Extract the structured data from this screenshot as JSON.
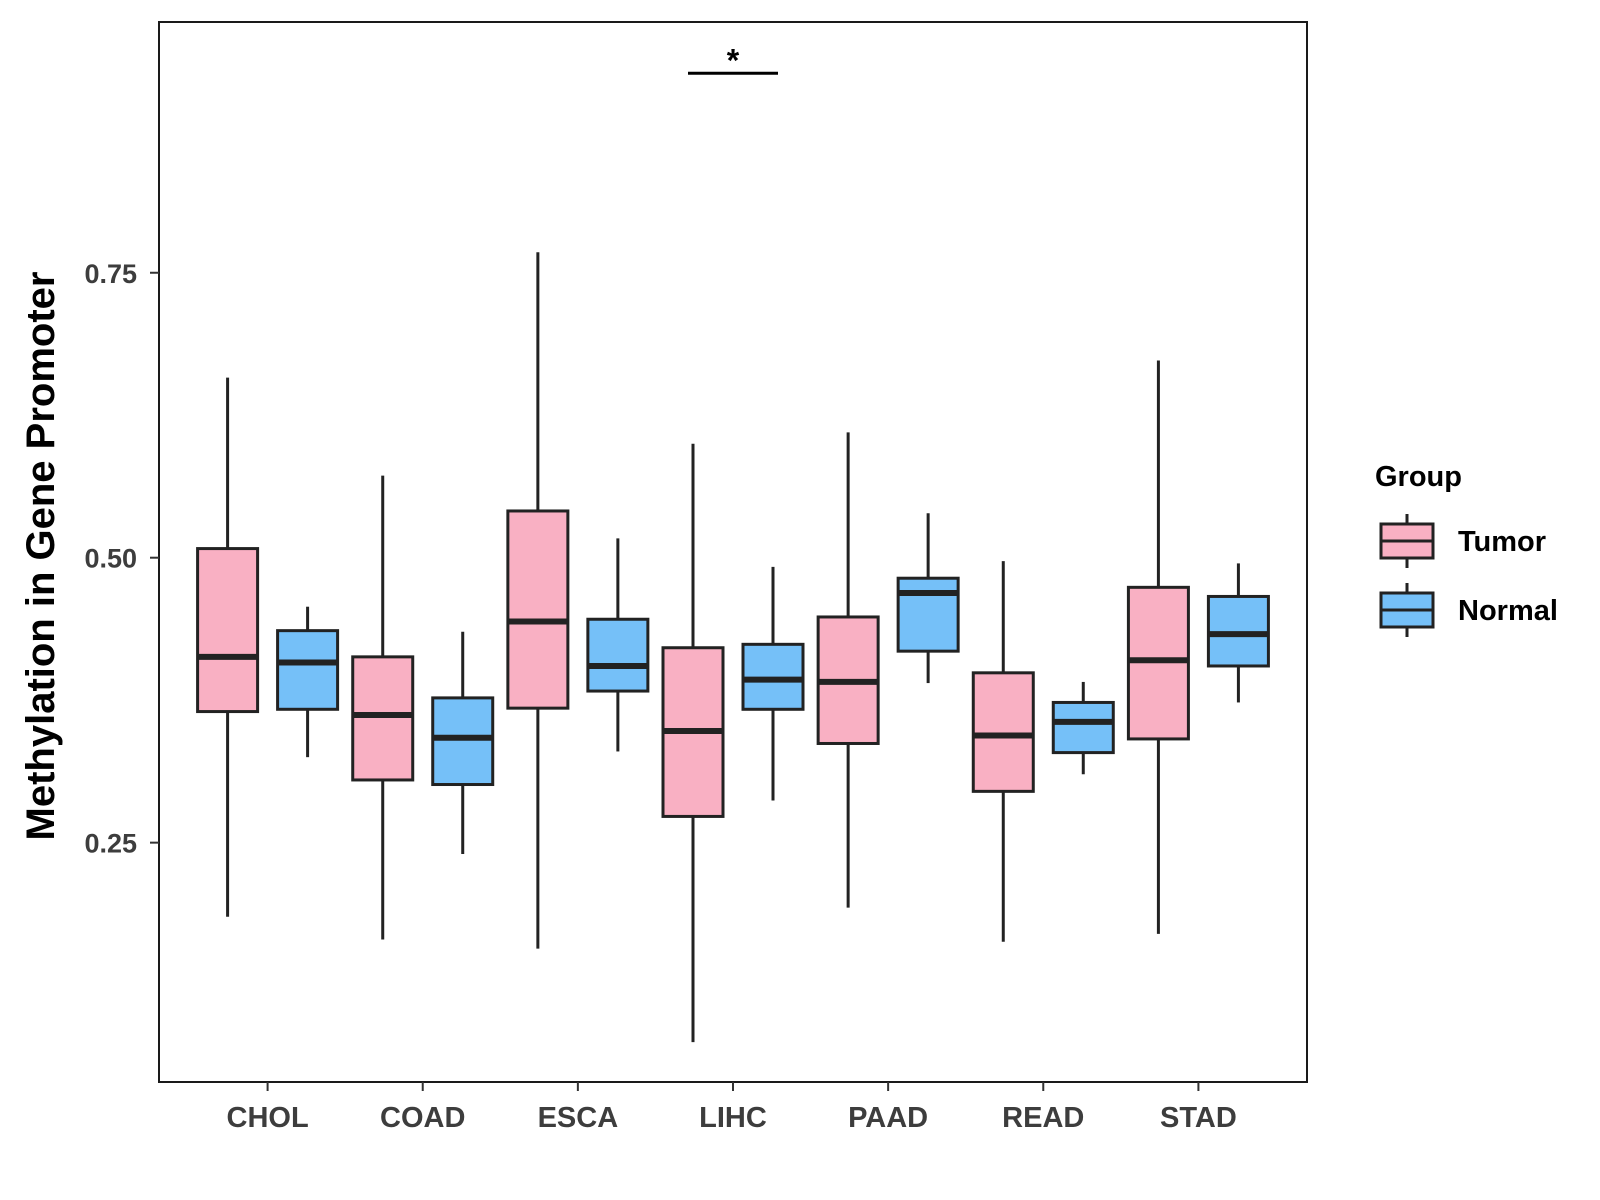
{
  "chart_data": {
    "type": "boxplot",
    "title": "",
    "xlabel": "",
    "ylabel": "Methylation in Gene Promoter",
    "ylim": [
      0.04,
      0.97
    ],
    "yticks": [
      0.25,
      0.5,
      0.75
    ],
    "ytick_labels": [
      "0.25",
      "0.50",
      "0.75"
    ],
    "grid": false,
    "categories": [
      "CHOL",
      "COAD",
      "ESCA",
      "LIHC",
      "PAAD",
      "READ",
      "STAD"
    ],
    "legend": {
      "title": "Group",
      "position": "right"
    },
    "series": [
      {
        "name": "Tumor",
        "color": "#F9B0C3",
        "boxes": [
          {
            "min": 0.185,
            "q1": 0.365,
            "median": 0.413,
            "q3": 0.508,
            "max": 0.658
          },
          {
            "min": 0.165,
            "q1": 0.305,
            "median": 0.362,
            "q3": 0.413,
            "max": 0.572
          },
          {
            "min": 0.157,
            "q1": 0.368,
            "median": 0.444,
            "q3": 0.541,
            "max": 0.768
          },
          {
            "min": 0.075,
            "q1": 0.273,
            "median": 0.348,
            "q3": 0.421,
            "max": 0.6
          },
          {
            "min": 0.193,
            "q1": 0.337,
            "median": 0.391,
            "q3": 0.448,
            "max": 0.61
          },
          {
            "min": 0.163,
            "q1": 0.295,
            "median": 0.344,
            "q3": 0.399,
            "max": 0.497
          },
          {
            "min": 0.17,
            "q1": 0.341,
            "median": 0.41,
            "q3": 0.474,
            "max": 0.673
          }
        ]
      },
      {
        "name": "Normal",
        "color": "#75C0F8",
        "boxes": [
          {
            "min": 0.325,
            "q1": 0.367,
            "median": 0.408,
            "q3": 0.436,
            "max": 0.457
          },
          {
            "min": 0.24,
            "q1": 0.301,
            "median": 0.342,
            "q3": 0.377,
            "max": 0.435
          },
          {
            "min": 0.33,
            "q1": 0.383,
            "median": 0.405,
            "q3": 0.446,
            "max": 0.517
          },
          {
            "min": 0.287,
            "q1": 0.367,
            "median": 0.393,
            "q3": 0.424,
            "max": 0.492
          },
          {
            "min": 0.39,
            "q1": 0.418,
            "median": 0.469,
            "q3": 0.482,
            "max": 0.539
          },
          {
            "min": 0.31,
            "q1": 0.329,
            "median": 0.356,
            "q3": 0.373,
            "max": 0.391
          },
          {
            "min": 0.373,
            "q1": 0.405,
            "median": 0.433,
            "q3": 0.466,
            "max": 0.495
          }
        ]
      }
    ],
    "annotations": [
      {
        "category": "LIHC",
        "text": "*",
        "y": 0.925
      }
    ]
  }
}
